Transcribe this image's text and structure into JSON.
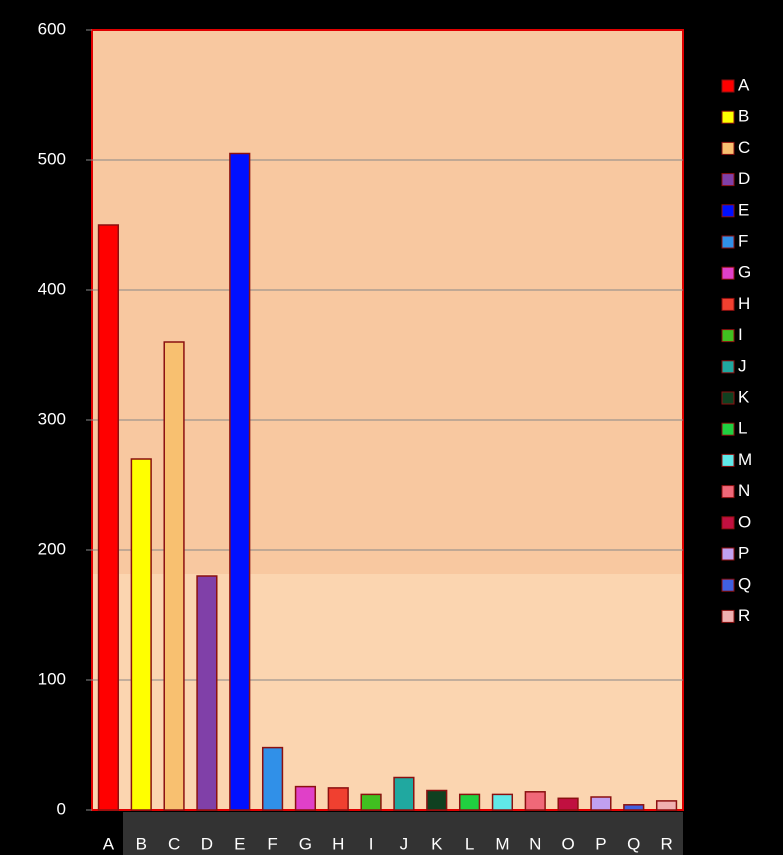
{
  "chart_data": {
    "type": "bar",
    "categories": [
      "A",
      "B",
      "C",
      "D",
      "E",
      "F",
      "G",
      "H",
      "I",
      "J",
      "K",
      "L",
      "M",
      "N",
      "O",
      "P",
      "Q",
      "R"
    ],
    "values": [
      450,
      270,
      360,
      180,
      505,
      48,
      18,
      17,
      12,
      25,
      15,
      12,
      12,
      14,
      9,
      10,
      4,
      7
    ],
    "colors": [
      "#ff0000",
      "#ffff00",
      "#f8c070",
      "#8040a8",
      "#0010ff",
      "#3090e8",
      "#e040c8",
      "#f04030",
      "#40c020",
      "#20a8a0",
      "#104020",
      "#20d040",
      "#60e8e8",
      "#f06878",
      "#c01040",
      "#c0a0f0",
      "#4060e0",
      "#f0b0b0"
    ],
    "ylim": [
      0,
      600
    ],
    "yticks": [
      0,
      100,
      200,
      300,
      400,
      500,
      600
    ],
    "grid": true,
    "legend": "right"
  }
}
